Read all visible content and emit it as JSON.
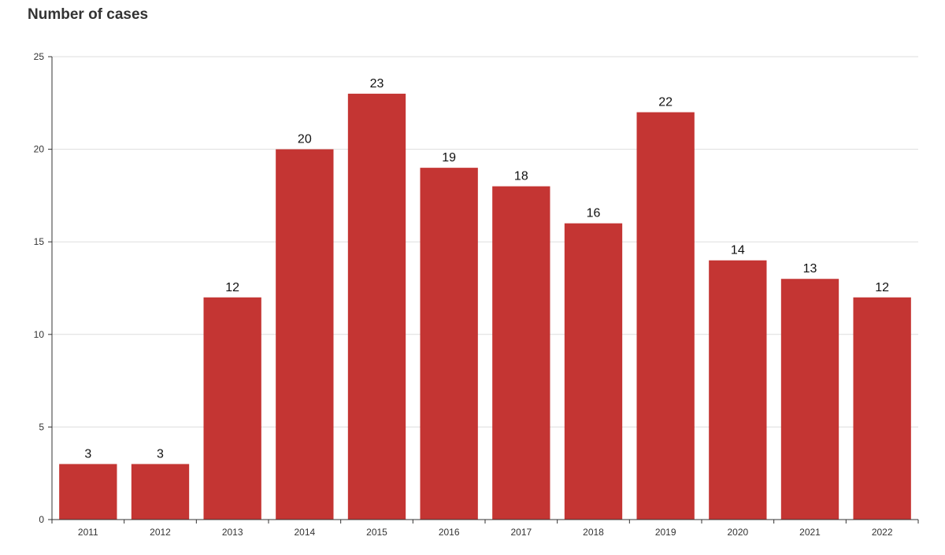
{
  "chart_data": {
    "type": "bar",
    "title": "Number of cases",
    "categories": [
      "2011",
      "2012",
      "2013",
      "2014",
      "2015",
      "2016",
      "2017",
      "2018",
      "2019",
      "2020",
      "2021",
      "2022"
    ],
    "values": [
      3,
      3,
      12,
      20,
      23,
      19,
      18,
      16,
      22,
      14,
      13,
      12
    ],
    "ylim": [
      0,
      25
    ],
    "yticks": [
      0,
      5,
      10,
      15,
      20,
      25
    ],
    "grid": true,
    "data_labels": true,
    "bar_color": "#c43533"
  }
}
